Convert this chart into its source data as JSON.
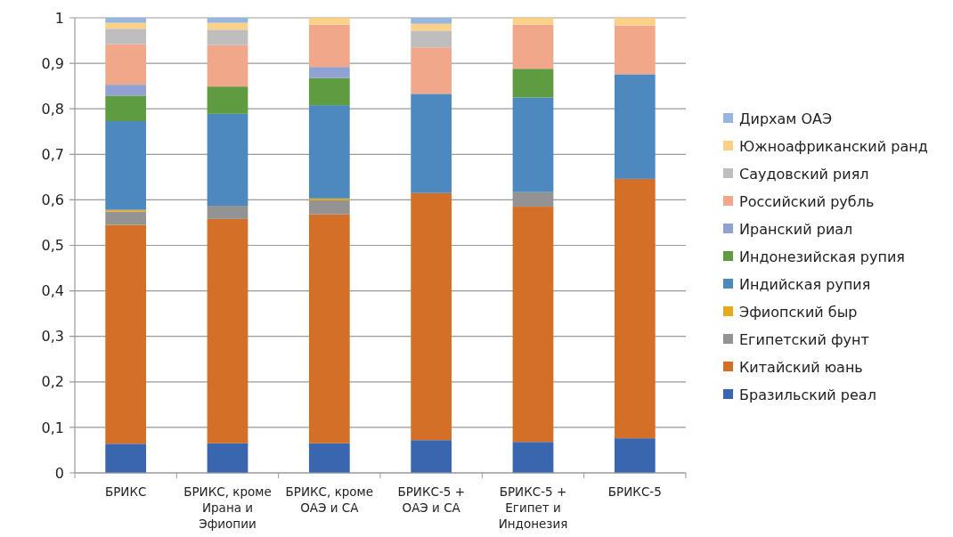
{
  "chart_data": {
    "type": "bar",
    "stacked": true,
    "categories": [
      "БРИКС",
      "БРИКС, кроме Ирана и Эфиопии",
      "БРИКС, кроме ОАЭ и СА",
      "БРИКС-5 + ОАЭ и СА",
      "БРИКС-5 + Египет и Индонезия",
      "БРИКС-5"
    ],
    "series": [
      {
        "name": "Бразильский реал",
        "color": "#3a66b0",
        "values": [
          0.064,
          0.065,
          0.065,
          0.072,
          0.068,
          0.076
        ]
      },
      {
        "name": "Китайский юань",
        "color": "#d46f28",
        "values": [
          0.481,
          0.493,
          0.503,
          0.543,
          0.517,
          0.57
        ]
      },
      {
        "name": "Египетский фунт",
        "color": "#939393",
        "values": [
          0.029,
          0.029,
          0.031,
          0,
          0.032,
          0
        ]
      },
      {
        "name": "Эфиопский быр",
        "color": "#e6a81c",
        "values": [
          0.004,
          0,
          0.004,
          0,
          0,
          0
        ]
      },
      {
        "name": "Индийская рупия",
        "color": "#4d89bf",
        "values": [
          0.195,
          0.202,
          0.205,
          0.218,
          0.208,
          0.23
        ]
      },
      {
        "name": "Индонезийская рупия",
        "color": "#5f9b41",
        "values": [
          0.056,
          0.06,
          0.06,
          0,
          0.063,
          0
        ]
      },
      {
        "name": "Иранский риал",
        "color": "#8fa2d2",
        "values": [
          0.024,
          0,
          0.024,
          0,
          0,
          0
        ]
      },
      {
        "name": "Российский рубль",
        "color": "#f0a78a",
        "values": [
          0.089,
          0.091,
          0.093,
          0.102,
          0.097,
          0.107
        ]
      },
      {
        "name": "Саудовский риял",
        "color": "#bebebe",
        "values": [
          0.034,
          0.034,
          0,
          0.037,
          0,
          0
        ]
      },
      {
        "name": "Южноафриканский ранд",
        "color": "#fdd088",
        "values": [
          0.013,
          0.015,
          0.015,
          0.015,
          0.015,
          0.017
        ]
      },
      {
        "name": "Дирхам ОАЭ",
        "color": "#97b6df",
        "values": [
          0.011,
          0.011,
          0,
          0.013,
          0,
          0
        ]
      }
    ],
    "ylim": [
      0,
      1
    ],
    "yticks": [
      0,
      {
        "value": 0.1,
        "label": "0,1"
      },
      {
        "value": 0.2,
        "label": "0,2"
      },
      {
        "value": 0.3,
        "label": "0,3"
      },
      {
        "value": 0.4,
        "label": "0,4"
      },
      {
        "value": 0.5,
        "label": "0,5"
      },
      {
        "value": 0.6,
        "label": "0,6"
      },
      {
        "value": 0.7,
        "label": "0,7"
      },
      {
        "value": 0.8,
        "label": "0,8"
      },
      {
        "value": 0.9,
        "label": "0,9"
      },
      1
    ],
    "grid": "y",
    "legend": "right"
  }
}
